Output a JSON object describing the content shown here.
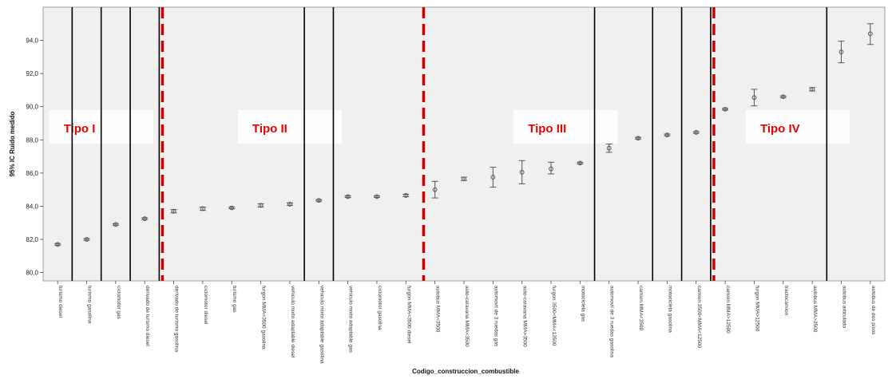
{
  "chart_data": {
    "type": "errorbar",
    "xlabel": "Codigo_construccion_combustible",
    "ylabel": "95% IC Ruido medido",
    "ylim": [
      79.5,
      96.0
    ],
    "yticks": [
      "80,0",
      "82,0",
      "84,0",
      "86,0",
      "88,0",
      "90,0",
      "92,0",
      "94,0"
    ],
    "ytick_values": [
      80,
      82,
      84,
      86,
      88,
      90,
      92,
      94
    ],
    "categories": [
      "turismo diesel",
      "turismo gasolina",
      "ciclomotor gas",
      "derivado de turismo diesel",
      "derivado de turismo gasolina",
      "ciclomotor diesel",
      "turismo gas",
      "furgon MMA<3500 gasolina",
      "vehiculo mixto adaptable diesel",
      "vehiculo mixto adaptable gasolina",
      "vehiculo mixto adaptable gas",
      "ciclomotor gasolina",
      "furgon MMA<3500 diesel",
      "autobus MMA<3500",
      "auto-caravana MMA<3500",
      "automovil de 3 ruedas gas",
      "auto-caravana MMA>3500",
      "furgon 3500<MMA<12500",
      "motocicleta gas",
      "automovil de 3 ruedas gasolina",
      "camion MMA<3500",
      "motocicleta gasolina",
      "camion 3500<MMA<12500",
      "camion MMA>12500",
      "furgon MMA>12500",
      "tractocamion",
      "autobus MMA>3500",
      "autobus articulado",
      "autobus de dos pisos"
    ],
    "series": [
      {
        "mean": [
          81.7,
          82.0,
          82.9,
          83.25,
          83.7,
          83.85,
          83.9,
          84.05,
          84.12,
          84.35,
          84.58,
          84.58,
          84.65,
          85.0,
          85.65,
          85.75,
          86.05,
          86.25,
          86.6,
          87.5,
          88.1,
          88.3,
          88.45,
          89.85,
          90.55,
          90.6,
          91.05,
          93.3,
          94.4
        ],
        "lower": [
          81.65,
          81.95,
          82.85,
          83.2,
          83.6,
          83.75,
          83.85,
          83.95,
          84.05,
          84.3,
          84.53,
          84.53,
          84.58,
          84.5,
          85.55,
          85.15,
          85.35,
          85.95,
          86.55,
          87.25,
          88.05,
          88.25,
          88.4,
          89.8,
          90.05,
          90.55,
          90.95,
          92.65,
          93.75
        ],
        "upper": [
          81.75,
          82.05,
          82.95,
          83.3,
          83.8,
          83.95,
          83.95,
          84.15,
          84.2,
          84.4,
          84.63,
          84.63,
          84.72,
          85.5,
          85.75,
          86.35,
          86.75,
          86.65,
          86.65,
          87.75,
          88.15,
          88.35,
          88.5,
          89.9,
          91.05,
          90.65,
          91.15,
          93.95,
          95.0
        ]
      }
    ],
    "black_divider_after": [
      1,
      2,
      3,
      4,
      9,
      10,
      19,
      21,
      22,
      23,
      27
    ],
    "red_divider_after": [
      4,
      13,
      23
    ],
    "regions": [
      {
        "label": "Tipo I",
        "from": 0,
        "to": 4
      },
      {
        "label": "Tipo II",
        "from": 4,
        "to": 13
      },
      {
        "label": "Tipo III",
        "from": 13,
        "to": 23
      },
      {
        "label": "Tipo IV",
        "from": 23,
        "to": 29
      }
    ],
    "grid": false,
    "colors": {
      "plot_bg": "#f0f0f0",
      "marker": "#555555",
      "divider": "#000000",
      "red_divider": "#cc0000",
      "region_text": "#e60000"
    }
  }
}
